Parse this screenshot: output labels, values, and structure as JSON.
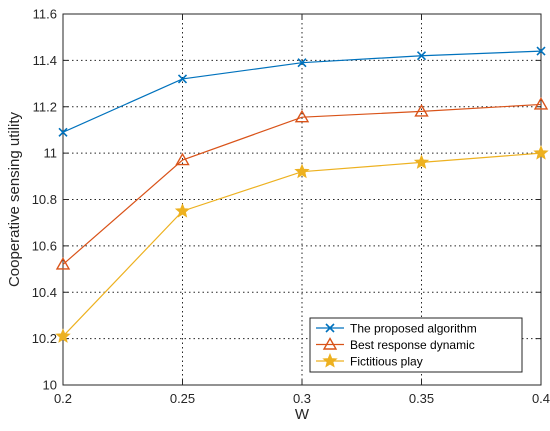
{
  "chart_data": {
    "type": "line",
    "xlabel": "W",
    "ylabel": "Cooperative sensing utility",
    "x": [
      0.2,
      0.25,
      0.3,
      0.35,
      0.4
    ],
    "xticks": [
      "0.2",
      "0.25",
      "0.3",
      "0.35",
      "0.4"
    ],
    "xlim": [
      0.2,
      0.4
    ],
    "yticks": [
      "10",
      "10.2",
      "10.4",
      "10.6",
      "10.8",
      "11",
      "11.2",
      "11.4",
      "11.6"
    ],
    "ylim": [
      10,
      11.6
    ],
    "grid": true,
    "legend_position": "bottom-right",
    "series": [
      {
        "name": "The proposed algorithm",
        "values": [
          11.09,
          11.32,
          11.39,
          11.42,
          11.44
        ],
        "color": "#0072bd",
        "marker": "x"
      },
      {
        "name": "Best response dynamic",
        "values": [
          10.52,
          10.97,
          11.155,
          11.18,
          11.21
        ],
        "color": "#d95319",
        "marker": "triangle"
      },
      {
        "name": "Fictitious play",
        "values": [
          10.21,
          10.75,
          10.92,
          10.96,
          11.0
        ],
        "color": "#edb120",
        "marker": "star"
      }
    ]
  }
}
